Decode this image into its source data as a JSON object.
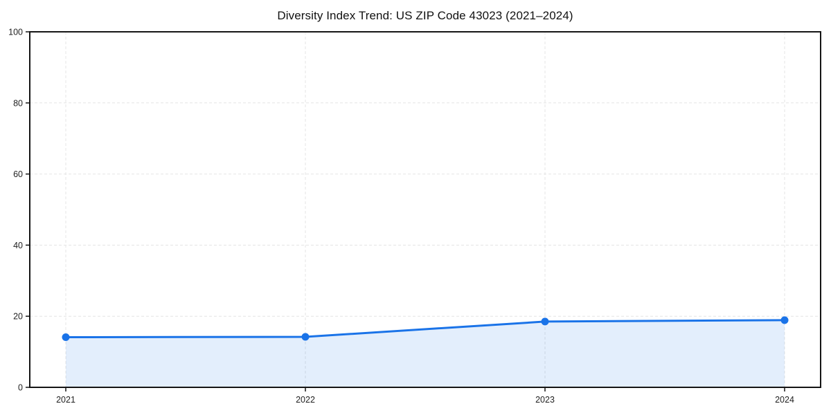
{
  "page": {
    "background": "#ffffff"
  },
  "chart_data": {
    "type": "area",
    "title": "Diversity Index Trend: US ZIP Code 43023 (2021–2024)",
    "x": [
      2021,
      2022,
      2023,
      2024
    ],
    "xtick_labels": [
      "2021",
      "2022",
      "2023",
      "2024"
    ],
    "series": [
      {
        "name": "Diversity Index",
        "values": [
          14.1,
          14.2,
          18.5,
          18.9
        ]
      }
    ],
    "xlabel": "",
    "ylabel": "",
    "ylim": [
      0,
      100
    ],
    "yticks": [
      0,
      20,
      40,
      60,
      80,
      100
    ],
    "grid": true,
    "grid_style": "dashed",
    "legend": "none",
    "marker": "circle",
    "line_width": 3,
    "marker_radius": 5.5,
    "colors": {
      "line": "#1a73e8",
      "marker": "#1a73e8",
      "fill": "rgba(26,115,232,0.12)",
      "grid": "#e4e4e4",
      "spine": "#141414",
      "tick_label": "#1f1f1f",
      "title": "#111111"
    }
  }
}
